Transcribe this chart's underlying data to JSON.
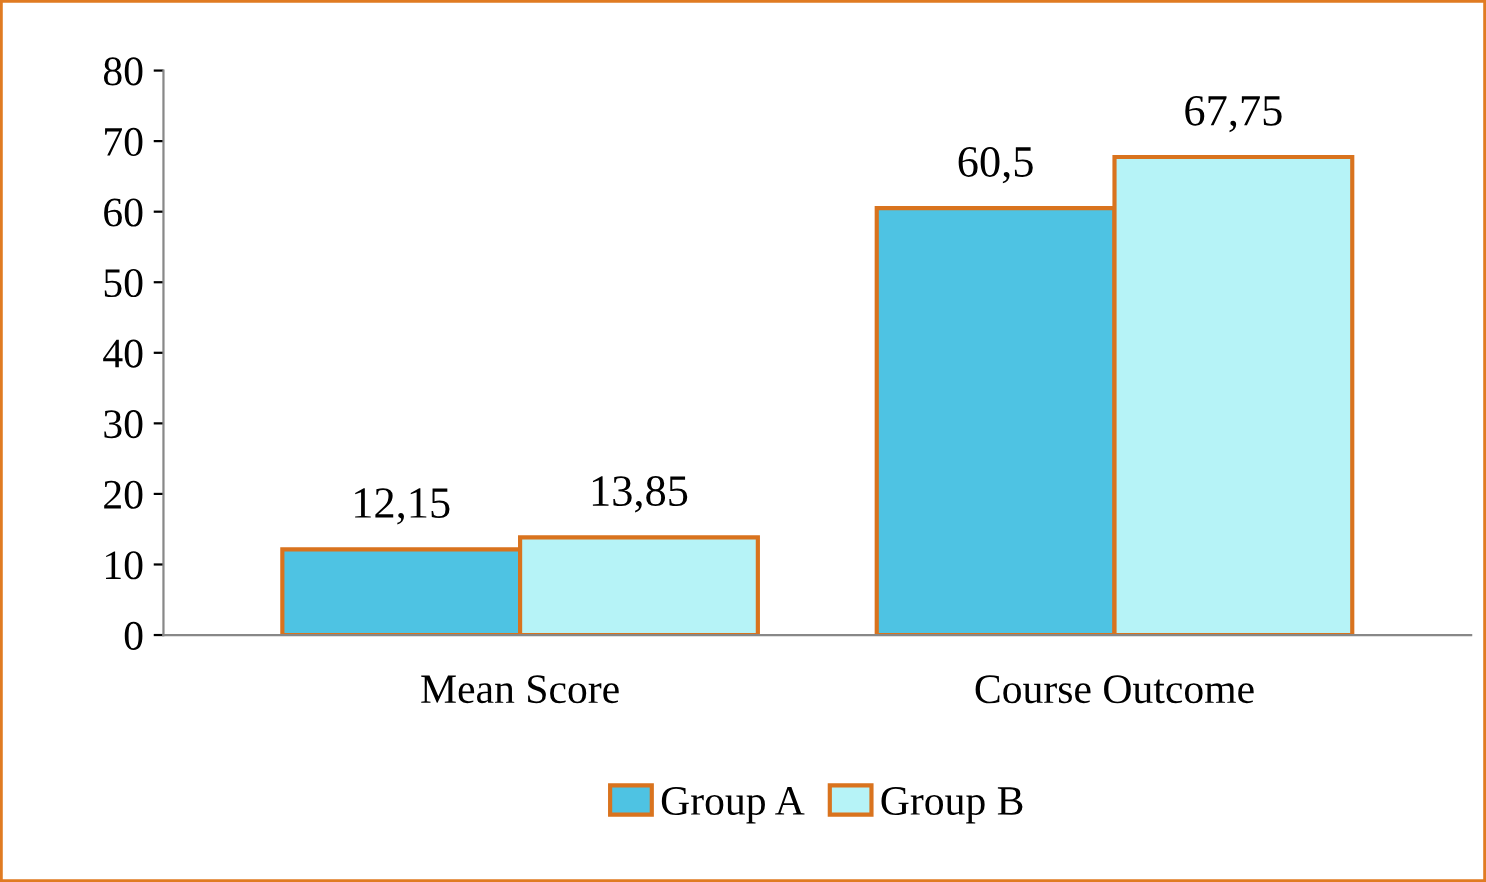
{
  "chart_data": {
    "type": "bar",
    "categories": [
      "Mean Score",
      "Course Outcome"
    ],
    "series": [
      {
        "name": "Group A",
        "color": "#4ec3e3",
        "values": [
          12.15,
          60.5
        ],
        "value_labels": [
          "12,15",
          "60,5"
        ]
      },
      {
        "name": "Group B",
        "color": "#b6f3f7",
        "values": [
          13.85,
          67.75
        ],
        "value_labels": [
          "13,85",
          "67,75"
        ]
      }
    ],
    "ylim": [
      0,
      80
    ],
    "yticks": [
      0,
      10,
      20,
      30,
      40,
      50,
      60,
      70,
      80
    ],
    "grid": false,
    "legend": "bottom"
  }
}
